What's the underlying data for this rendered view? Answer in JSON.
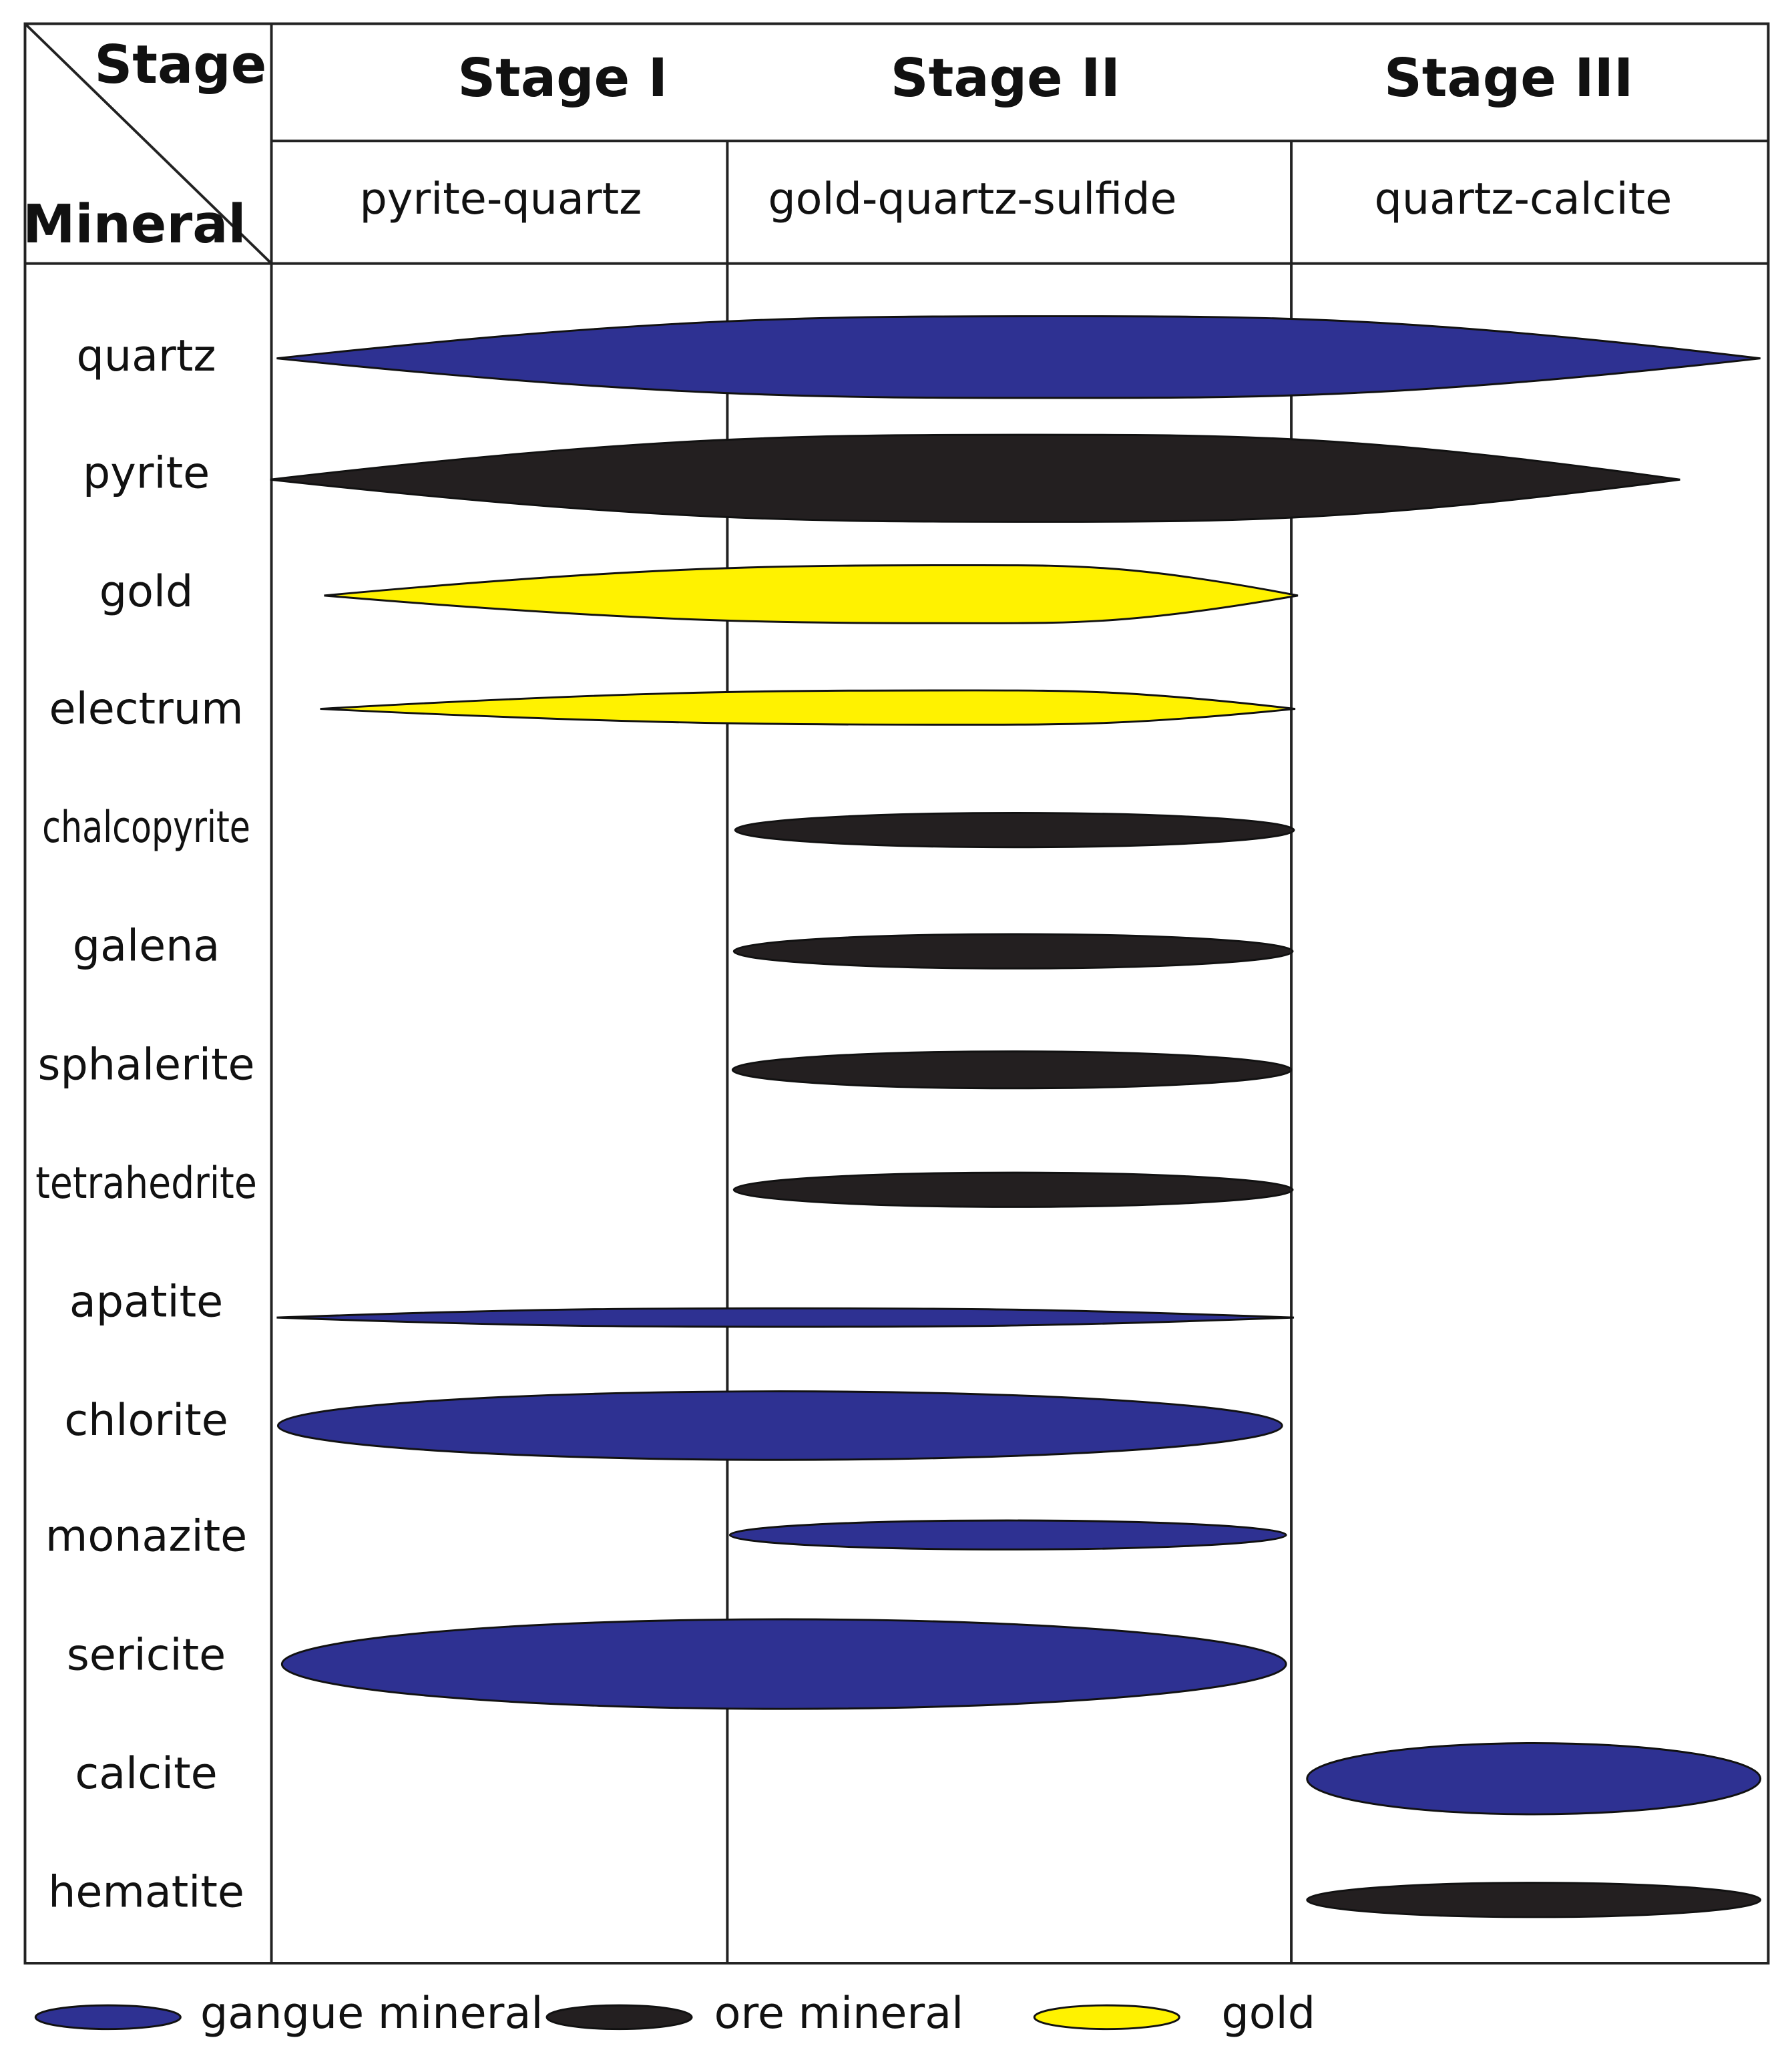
{
  "header": {
    "stage_label": "Stage",
    "mineral_label": "Mineral"
  },
  "stages": [
    {
      "name": "Stage I",
      "assemblage": "pyrite-quartz"
    },
    {
      "name": "Stage II",
      "assemblage": "gold-quartz-sulfide"
    },
    {
      "name": "Stage III",
      "assemblage": "quartz-calcite"
    }
  ],
  "minerals": [
    "quartz",
    "pyrite",
    "gold",
    "electrum",
    "chalcopyrite",
    "galena",
    "sphalerite",
    "tetrahedrite",
    "apatite",
    "chlorite",
    "monazite",
    "sericite",
    "calcite",
    "hematite"
  ],
  "legend": [
    "gangue mineral",
    "ore mineral",
    "gold"
  ]
}
